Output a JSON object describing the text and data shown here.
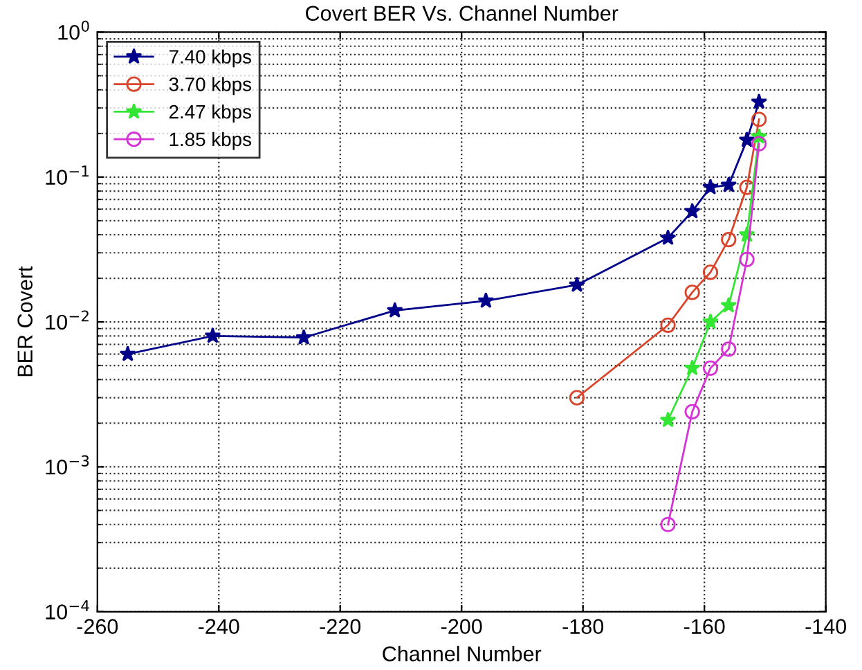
{
  "chart_data": {
    "type": "line",
    "title": "Covert BER Vs. Channel Number",
    "xlabel": "Channel Number",
    "ylabel": "BER Covert",
    "log": "y",
    "grid": true,
    "legend": "top left",
    "line_style": "solid",
    "xlim": [
      -260,
      -140
    ],
    "xticks": [
      -260,
      -240,
      -220,
      -200,
      -180,
      -160,
      -140
    ],
    "ylim": [
      0.0001,
      1
    ],
    "yticks": [
      {
        "value": 0.0001,
        "label": "10$^{−4}$"
      },
      {
        "value": 0.001,
        "label": "10$^{−3}$"
      },
      {
        "value": 0.01,
        "label": "10$^{−2}$"
      },
      {
        "value": 0.1,
        "label": "10$^{−1}$"
      },
      {
        "value": 1,
        "label": "10$^{0}$"
      }
    ],
    "series": [
      {
        "name": "7.40 kbps",
        "color": "#00008b",
        "marker": "star",
        "x": [
          -255,
          -241,
          -226,
          -211,
          -196,
          -181,
          -166,
          -162,
          -159,
          -156,
          -153,
          -151
        ],
        "values": [
          0.006,
          0.008,
          0.0078,
          0.012,
          0.014,
          0.018,
          0.038,
          0.058,
          0.085,
          0.088,
          0.18,
          0.33
        ]
      },
      {
        "name": "3.70 kbps",
        "color": "#d9452b",
        "marker": "circle",
        "x": [
          -181,
          -166,
          -162,
          -159,
          -156,
          -153,
          -151
        ],
        "values": [
          0.003,
          0.0095,
          0.016,
          0.022,
          0.037,
          0.085,
          0.25
        ]
      },
      {
        "name": "2.47 kbps",
        "color": "#33e633",
        "marker": "star",
        "x": [
          -166,
          -162,
          -159,
          -156,
          -153,
          -151
        ],
        "values": [
          0.0021,
          0.0048,
          0.01,
          0.013,
          0.04,
          0.19
        ]
      },
      {
        "name": "1.85 kbps",
        "color": "#d633d6",
        "marker": "circle",
        "x": [
          -166,
          -162,
          -159,
          -156,
          -153,
          -151
        ],
        "values": [
          0.0004,
          0.0024,
          0.0048,
          0.0065,
          0.027,
          0.17
        ]
      }
    ]
  }
}
